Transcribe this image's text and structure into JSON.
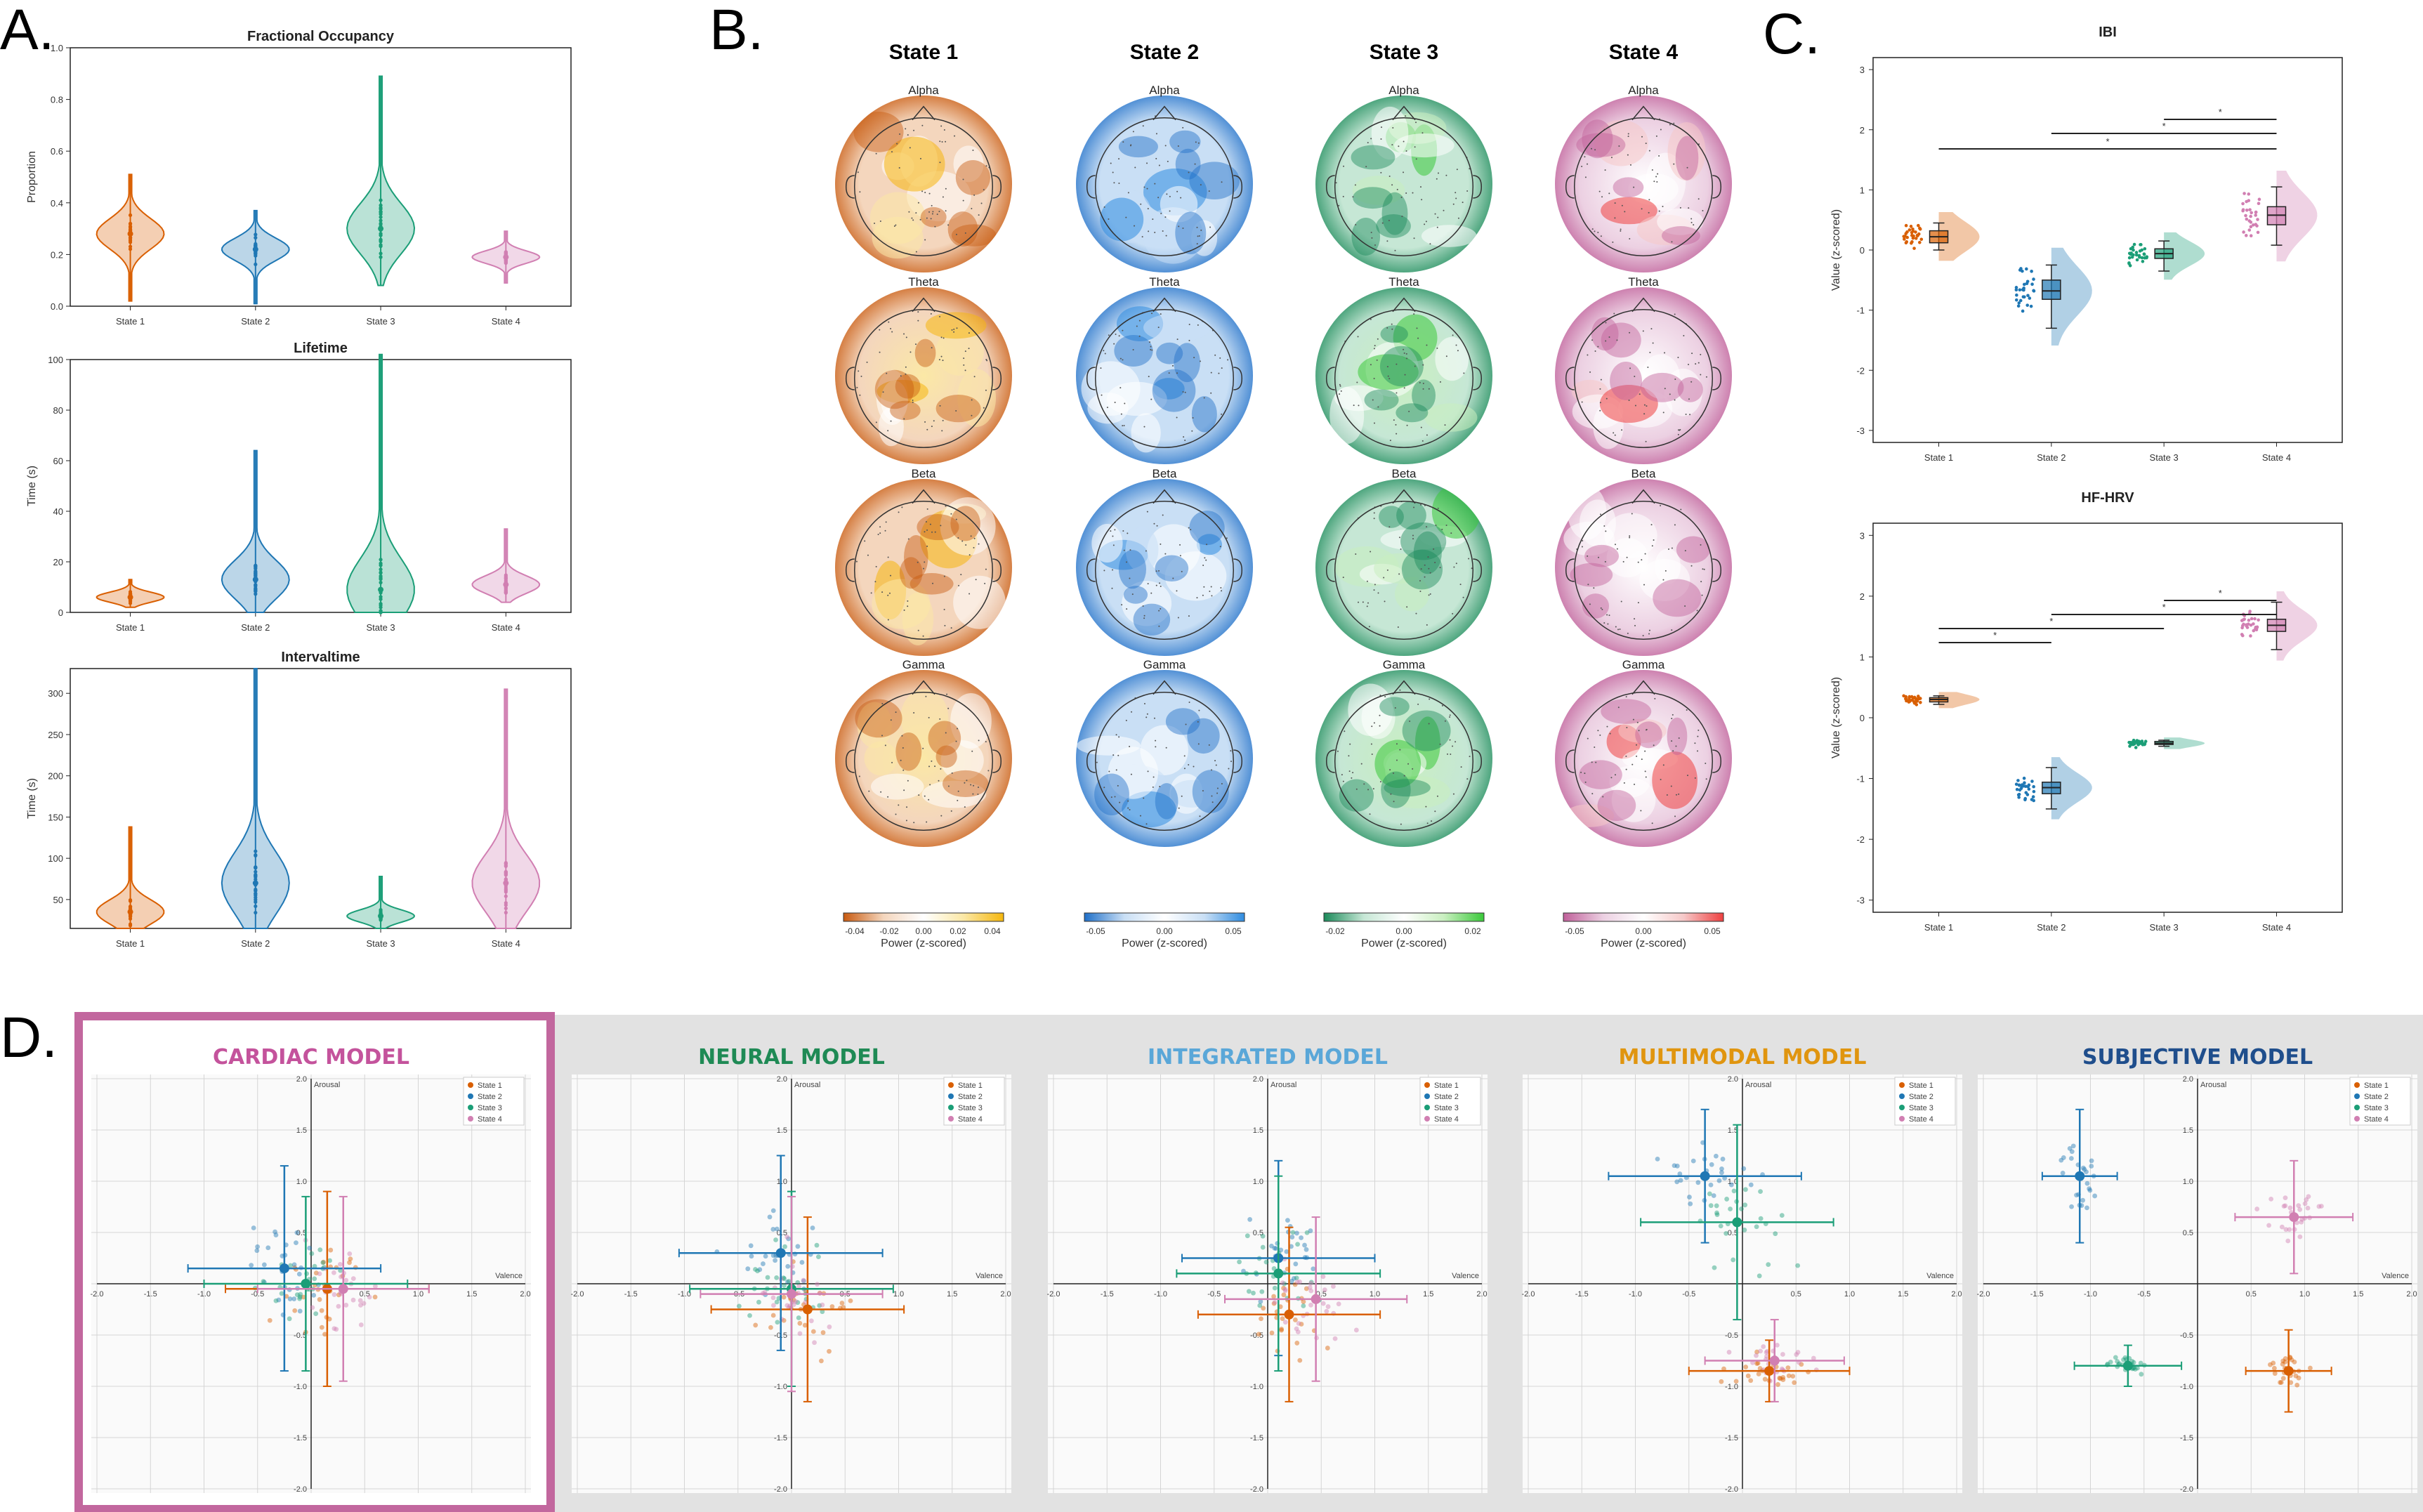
{
  "panel_labels": {
    "A": "A.",
    "B": "B.",
    "C": "C.",
    "D": "D."
  },
  "colors": {
    "state1": "#d95f02",
    "state2": "#1f77b4",
    "state3": "#1b9e77",
    "state4": "#d17fb2",
    "frame": "#c2679e",
    "gray_bg": "#e2e2e2"
  },
  "chart_data": [
    {
      "id": "A1",
      "type": "violin",
      "title": "Fractional Occupancy",
      "xlabel": "",
      "ylabel": "Proportion",
      "categories": [
        "State 1",
        "State 2",
        "State 3",
        "State 4"
      ],
      "yticks": [
        "0.0",
        "0.2",
        "0.4",
        "0.6",
        "0.8",
        "1.0"
      ],
      "ylim": [
        0,
        1.0
      ],
      "violins": [
        {
          "state": "State 1",
          "min": 0.02,
          "max": 0.51,
          "median": 0.28
        },
        {
          "state": "State 2",
          "min": 0.01,
          "max": 0.37,
          "median": 0.22
        },
        {
          "state": "State 3",
          "min": 0.08,
          "max": 0.89,
          "median": 0.3
        },
        {
          "state": "State 4",
          "min": 0.09,
          "max": 0.29,
          "median": 0.19
        }
      ]
    },
    {
      "id": "A2",
      "type": "violin",
      "title": "Lifetime",
      "xlabel": "",
      "ylabel": "Time (s)",
      "categories": [
        "State 1",
        "State 2",
        "State 3",
        "State 4"
      ],
      "yticks": [
        "0",
        "20",
        "40",
        "60",
        "80",
        "100"
      ],
      "ylim": [
        0,
        100
      ],
      "violins": [
        {
          "state": "State 1",
          "min": 2,
          "max": 13,
          "median": 6
        },
        {
          "state": "State 2",
          "min": 0,
          "max": 64,
          "median": 13
        },
        {
          "state": "State 3",
          "min": 0,
          "max": 102,
          "median": 9
        },
        {
          "state": "State 4",
          "min": 4,
          "max": 33,
          "median": 11
        }
      ]
    },
    {
      "id": "A3",
      "type": "violin",
      "title": "Intervaltime",
      "xlabel": "",
      "ylabel": "Time (s)",
      "categories": [
        "State 1",
        "State 2",
        "State 3",
        "State 4"
      ],
      "yticks": [
        "50",
        "100",
        "150",
        "200",
        "250",
        "300"
      ],
      "ylim": [
        15,
        330
      ],
      "violins": [
        {
          "state": "State 1",
          "min": 15,
          "max": 138,
          "median": 35
        },
        {
          "state": "State 2",
          "min": 15,
          "max": 330,
          "median": 70
        },
        {
          "state": "State 3",
          "min": 15,
          "max": 78,
          "median": 30
        },
        {
          "state": "State 4",
          "min": 15,
          "max": 305,
          "median": 70
        }
      ]
    },
    {
      "id": "B",
      "type": "heatmap",
      "title": "",
      "states": [
        "State 1",
        "State 2",
        "State 3",
        "State 4"
      ],
      "bands": [
        "Alpha",
        "Theta",
        "Beta",
        "Gamma"
      ],
      "colorbar_label": "Power (z-scored)",
      "colorbars": [
        {
          "ticks": [
            "-0.04",
            "-0.02",
            "0.00",
            "0.02",
            "0.04"
          ],
          "stops": [
            "#c85a10",
            "#f4d6bd",
            "#ffffff",
            "#fbe8a6",
            "#f5b70e"
          ]
        },
        {
          "ticks": [
            "-0.05",
            "0.00",
            "0.05"
          ],
          "stops": [
            "#1f6fc8",
            "#c9dff5",
            "#ffffff",
            "#c9dff5",
            "#2f8ce0"
          ]
        },
        {
          "ticks": [
            "-0.02",
            "0.00",
            "0.02"
          ],
          "stops": [
            "#1b8a5a",
            "#c6e7d5",
            "#ffffff",
            "#c9efc0",
            "#3ac93a"
          ]
        },
        {
          "ticks": [
            "-0.05",
            "0.00",
            "0.05"
          ],
          "stops": [
            "#c0609a",
            "#ecd0e2",
            "#ffffff",
            "#f6c9c9",
            "#ee4040"
          ]
        }
      ]
    },
    {
      "id": "C1",
      "type": "raincloud",
      "title": "IBI",
      "xlabel": "",
      "ylabel": "Value (z-scored)",
      "categories": [
        "State 1",
        "State 2",
        "State 3",
        "State 4"
      ],
      "yticks": [
        "-3",
        "-2",
        "-1",
        "0",
        "1",
        "2",
        "3"
      ],
      "ylim": [
        -3.2,
        3.2
      ],
      "medians": [
        0.22,
        -0.68,
        -0.06,
        0.58
      ],
      "q1": [
        0.12,
        -0.82,
        -0.14,
        0.42
      ],
      "q3": [
        0.32,
        -0.5,
        0.02,
        0.72
      ],
      "whisker_low": [
        0.0,
        -1.3,
        -0.35,
        0.08
      ],
      "whisker_high": [
        0.45,
        -0.25,
        0.15,
        1.05
      ],
      "significance": [
        {
          "from": "State 1",
          "to": "State 4",
          "label": "*"
        },
        {
          "from": "State 2",
          "to": "State 4",
          "label": "*"
        },
        {
          "from": "State 3",
          "to": "State 4",
          "label": "*"
        }
      ]
    },
    {
      "id": "C2",
      "type": "raincloud",
      "title": "HF-HRV",
      "xlabel": "",
      "ylabel": "Value (z-scored)",
      "categories": [
        "State 1",
        "State 2",
        "State 3",
        "State 4"
      ],
      "yticks": [
        "-3",
        "-2",
        "-1",
        "0",
        "1",
        "2",
        "3"
      ],
      "ylim": [
        -3.2,
        3.2
      ],
      "medians": [
        0.3,
        -1.15,
        -0.42,
        1.52
      ],
      "q1": [
        0.26,
        -1.25,
        -0.44,
        1.42
      ],
      "q3": [
        0.33,
        -1.06,
        -0.39,
        1.62
      ],
      "whisker_low": [
        0.22,
        -1.5,
        -0.47,
        1.12
      ],
      "whisker_high": [
        0.36,
        -0.82,
        -0.37,
        1.9
      ],
      "significance": [
        {
          "from": "State 1",
          "to": "State 2",
          "label": "*"
        },
        {
          "from": "State 1",
          "to": "State 3",
          "label": "*"
        },
        {
          "from": "State 2",
          "to": "State 4",
          "label": "*"
        },
        {
          "from": "State 3",
          "to": "State 4",
          "label": "*"
        }
      ]
    },
    {
      "id": "D",
      "type": "scatter",
      "xlabel": "Valence",
      "ylabel": "Arousal",
      "xlim": [
        -2.0,
        2.0
      ],
      "ylim": [
        -2.0,
        2.0
      ],
      "xticks": [
        "-2.0",
        "-1.5",
        "-1.0",
        "-0.5",
        "0.5",
        "1.0",
        "1.5",
        "2.0"
      ],
      "yticks": [
        "2.0",
        "1.5",
        "1.0",
        "0.5",
        "-0.5",
        "-1.0",
        "-1.5",
        "-2.0"
      ],
      "legend": [
        "State 1",
        "State 2",
        "State 3",
        "State 4"
      ],
      "models": [
        {
          "title": "CARDIAC MODEL",
          "color": "#c4539c",
          "highlight": true,
          "means": [
            {
              "x": 0.15,
              "y": -0.05,
              "sx": 0.95,
              "sy": 0.95
            },
            {
              "x": -0.25,
              "y": 0.15,
              "sx": 0.9,
              "sy": 1.0
            },
            {
              "x": -0.05,
              "y": 0.0,
              "sx": 0.95,
              "sy": 0.85
            },
            {
              "x": 0.3,
              "y": -0.05,
              "sx": 0.8,
              "sy": 0.9
            }
          ]
        },
        {
          "title": "NEURAL MODEL",
          "color": "#1f8a55",
          "highlight": false,
          "means": [
            {
              "x": 0.15,
              "y": -0.25,
              "sx": 0.9,
              "sy": 0.9
            },
            {
              "x": -0.1,
              "y": 0.3,
              "sx": 0.95,
              "sy": 0.95
            },
            {
              "x": 0.0,
              "y": -0.05,
              "sx": 0.95,
              "sy": 0.95
            },
            {
              "x": 0.0,
              "y": -0.1,
              "sx": 0.85,
              "sy": 0.95
            }
          ]
        },
        {
          "title": "INTEGRATED MODEL",
          "color": "#5aa7d8",
          "highlight": false,
          "means": [
            {
              "x": 0.2,
              "y": -0.3,
              "sx": 0.85,
              "sy": 0.85
            },
            {
              "x": 0.1,
              "y": 0.25,
              "sx": 0.9,
              "sy": 0.95
            },
            {
              "x": 0.1,
              "y": 0.1,
              "sx": 0.95,
              "sy": 0.95
            },
            {
              "x": 0.45,
              "y": -0.15,
              "sx": 0.85,
              "sy": 0.8
            }
          ]
        },
        {
          "title": "MULTIMODAL MODEL",
          "color": "#e0950f",
          "highlight": false,
          "means": [
            {
              "x": 0.25,
              "y": -0.85,
              "sx": 0.75,
              "sy": 0.3
            },
            {
              "x": -0.35,
              "y": 1.05,
              "sx": 0.9,
              "sy": 0.65
            },
            {
              "x": -0.05,
              "y": 0.6,
              "sx": 0.9,
              "sy": 0.95
            },
            {
              "x": 0.3,
              "y": -0.75,
              "sx": 0.65,
              "sy": 0.4
            }
          ]
        },
        {
          "title": "SUBJECTIVE MODEL",
          "color": "#1f4e8c",
          "highlight": false,
          "means": [
            {
              "x": 0.85,
              "y": -0.85,
              "sx": 0.4,
              "sy": 0.4
            },
            {
              "x": -1.1,
              "y": 1.05,
              "sx": 0.35,
              "sy": 0.65
            },
            {
              "x": -0.65,
              "y": -0.8,
              "sx": 0.5,
              "sy": 0.2
            },
            {
              "x": 0.9,
              "y": 0.65,
              "sx": 0.55,
              "sy": 0.55
            }
          ]
        }
      ]
    }
  ]
}
